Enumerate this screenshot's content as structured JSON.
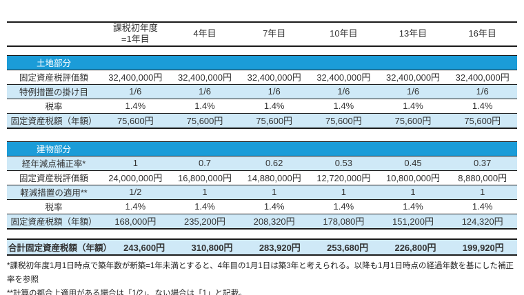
{
  "colors": {
    "section_bar_blue": "#1b9cd8",
    "row_shade_blue": "#cfe9f7",
    "rule_black": "#1a1a1a",
    "text": "#333333"
  },
  "header": {
    "columns": [
      "課税初年度\n=1年目",
      "4年目",
      "7年目",
      "10年目",
      "13年目",
      "16年目"
    ]
  },
  "sections": [
    {
      "title": "土地部分",
      "rows": [
        {
          "label": "固定資産税評価額",
          "values": [
            "32,400,000円",
            "32,400,000円",
            "32,400,000円",
            "32,400,000円",
            "32,400,000円",
            "32,400,000円"
          ]
        },
        {
          "label": "特例措置の掛け目",
          "values": [
            "1/6",
            "1/6",
            "1/6",
            "1/6",
            "1/6",
            "1/6"
          ]
        },
        {
          "label": "税率",
          "values": [
            "1.4%",
            "1.4%",
            "1.4%",
            "1.4%",
            "1.4%",
            "1.4%"
          ]
        },
        {
          "label": "固定資産税額（年額）",
          "values": [
            "75,600円",
            "75,600円",
            "75,600円",
            "75,600円",
            "75,600円",
            "75,600円"
          ]
        }
      ]
    },
    {
      "title": "建物部分",
      "rows": [
        {
          "label": "経年減点補正率*",
          "values": [
            "1",
            "0.7",
            "0.62",
            "0.53",
            "0.45",
            "0.37"
          ]
        },
        {
          "label": "固定資産税評価額",
          "values": [
            "24,000,000円",
            "16,800,000円",
            "14,880,000円",
            "12,720,000円",
            "10,800,000円",
            "8,880,000円"
          ]
        },
        {
          "label": "軽減措置の適用**",
          "values": [
            "1/2",
            "1",
            "1",
            "1",
            "1",
            "1"
          ]
        },
        {
          "label": "税率",
          "values": [
            "1.4%",
            "1.4%",
            "1.4%",
            "1.4%",
            "1.4%",
            "1.4%"
          ]
        },
        {
          "label": "固定資産税額（年額）",
          "values": [
            "168,000円",
            "235,200円",
            "208,320円",
            "178,080円",
            "151,200円",
            "124,320円"
          ]
        }
      ]
    }
  ],
  "total": {
    "label": "合計固定資産税額（年額）",
    "values": [
      "243,600円",
      "310,800円",
      "283,920円",
      "253,680円",
      "226,800円",
      "199,920円"
    ]
  },
  "footnotes": [
    "*課税初年度1月1日時点で築年数が新築=1年未満とすると、4年目の1月1日は築3年と考えられる。以降も1月1日時点の経過年数を基にした補正率を参照",
    "**計算の都合上適用がある場合は「1/2」、ない場合は「1」と記載。"
  ]
}
